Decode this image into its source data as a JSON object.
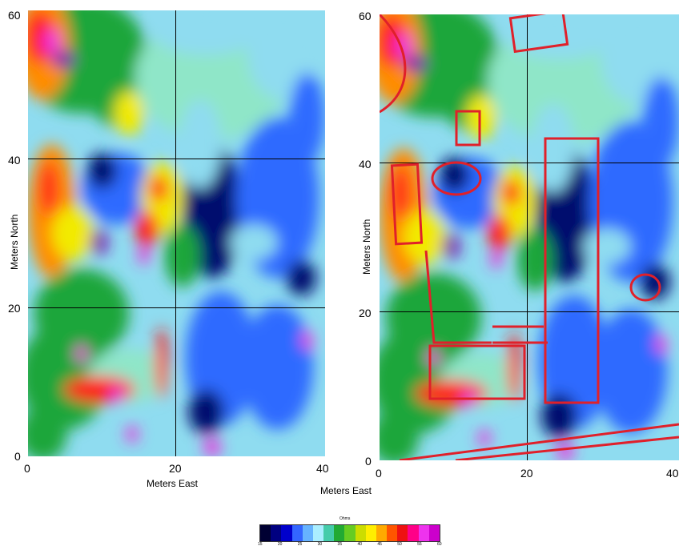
{
  "chart_data": [
    {
      "type": "heatmap",
      "panel": "left",
      "xlabel": "Meters East",
      "ylabel": "Meters North",
      "xlim": [
        0,
        40
      ],
      "ylim": [
        0,
        60
      ],
      "x_ticks": [
        "0",
        "20",
        "40"
      ],
      "y_ticks": [
        "0",
        "20",
        "40",
        "60"
      ],
      "grid": true
    },
    {
      "type": "heatmap",
      "panel": "right",
      "xlabel": "Meters East",
      "ylabel": "Meters North",
      "xlim": [
        0,
        40
      ],
      "ylim": [
        0,
        60
      ],
      "x_ticks": [
        "0",
        "20",
        "40"
      ],
      "y_ticks": [
        "0",
        "20",
        "40",
        "60"
      ],
      "grid": true,
      "annotation_color": "#e0202a"
    }
  ],
  "colorbar": {
    "title": "Ohms",
    "ticks": [
      "15",
      "20",
      "25",
      "30",
      "35",
      "40",
      "45",
      "50",
      "55",
      "60"
    ],
    "colors": [
      "#000033",
      "#000080",
      "#0000cc",
      "#3366ff",
      "#66b3ff",
      "#aaeeff",
      "#44ccaa",
      "#22aa33",
      "#66cc22",
      "#ccdd00",
      "#ffee00",
      "#ffaa00",
      "#ff5500",
      "#ee1111",
      "#ff0088",
      "#ee33ee",
      "#cc00cc"
    ]
  },
  "palette": {
    "dark_blue": "#000a6e",
    "blue": "#2f6bff",
    "light_blue": "#8fdcf0",
    "cyan_green": "#8fe6c8",
    "green": "#1ea63a",
    "yellow": "#f2ea00",
    "orange": "#ff8c00",
    "red": "#ff1a1a",
    "magenta": "#ee33dd",
    "purple": "#7a1fb0"
  }
}
